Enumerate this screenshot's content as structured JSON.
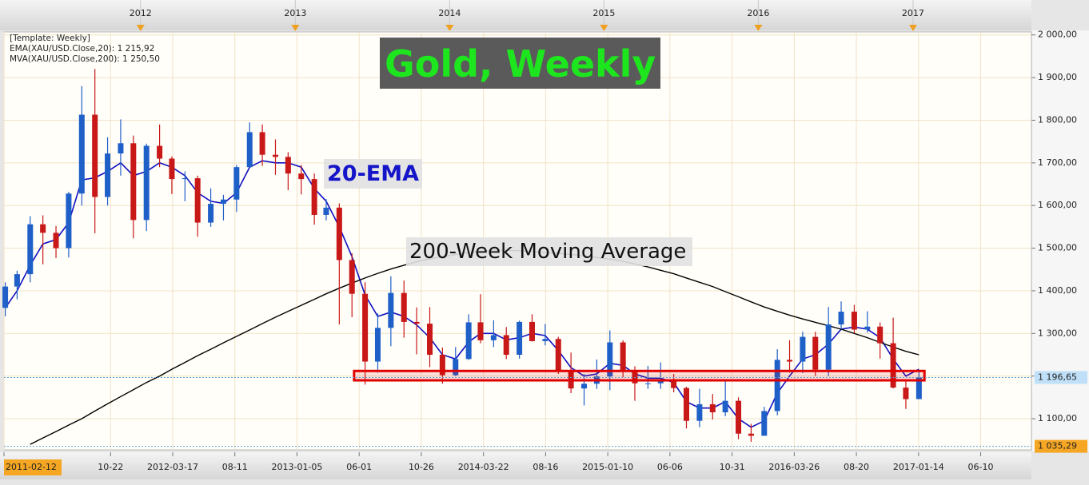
{
  "chart_data": {
    "type": "candlestick",
    "title": "Gold, Weekly",
    "annotations": [
      "20-EMA",
      "200-Week Moving Average"
    ],
    "legend": [
      {
        "text": "[Template: Weekly]",
        "color": "#333333"
      },
      {
        "text": "EMA(XAU/USD.Close,20): 1 215,92",
        "color": "#1a1aa0"
      },
      {
        "text": "MVA(XAU/USD.Close,200): 1 250,50",
        "color": "#111111"
      }
    ],
    "up_color": "#1f5fc8",
    "down_color": "#c81818",
    "x": [
      "2011-02-15",
      "2011-03-15",
      "2011-04-15",
      "2011-05-15",
      "2011-06-15",
      "2011-07-15",
      "2011-08-15",
      "2011-09-15",
      "2011-10-15",
      "2011-11-15",
      "2011-12-15",
      "2012-01-15",
      "2012-02-15",
      "2012-03-15",
      "2012-04-15",
      "2012-05-15",
      "2012-06-15",
      "2012-07-15",
      "2012-08-15",
      "2012-09-15",
      "2012-10-15",
      "2012-11-15",
      "2012-12-15",
      "2013-01-15",
      "2013-02-15",
      "2013-03-15",
      "2013-04-15",
      "2013-05-15",
      "2013-06-15",
      "2013-07-15",
      "2013-08-15",
      "2013-09-15",
      "2013-10-15",
      "2013-11-15",
      "2013-12-15",
      "2014-01-15",
      "2014-02-15",
      "2014-03-15",
      "2014-04-15",
      "2014-05-15",
      "2014-06-15",
      "2014-07-15",
      "2014-08-15",
      "2014-09-15",
      "2014-10-15",
      "2014-11-15",
      "2014-12-15",
      "2015-01-15",
      "2015-02-15",
      "2015-03-15",
      "2015-04-15",
      "2015-05-15",
      "2015-06-15",
      "2015-07-15",
      "2015-08-15",
      "2015-09-15",
      "2015-10-15",
      "2015-11-15",
      "2015-12-15",
      "2016-01-15",
      "2016-02-15",
      "2016-03-15",
      "2016-04-15",
      "2016-05-15",
      "2016-06-15",
      "2016-07-15",
      "2016-08-15",
      "2016-09-15",
      "2016-10-15",
      "2016-11-15",
      "2016-12-15",
      "2017-01-15"
    ],
    "open": [
      1360,
      1410,
      1439,
      1556,
      1536,
      1500,
      1628,
      1813,
      1620,
      1722,
      1746,
      1566,
      1740,
      1710,
      1662,
      1664,
      1560,
      1604,
      1614,
      1690,
      1772,
      1719,
      1714,
      1675,
      1662,
      1578,
      1595,
      1472,
      1393,
      1234,
      1313,
      1395,
      1327,
      1323,
      1250,
      1202,
      1240,
      1326,
      1284,
      1296,
      1250,
      1327,
      1282,
      1287,
      1210,
      1171,
      1182,
      1199,
      1279,
      1212,
      1183,
      1183,
      1190,
      1172,
      1095,
      1134,
      1115,
      1142,
      1065,
      1060,
      1118,
      1238,
      1234,
      1292,
      1215,
      1321,
      1351,
      1309,
      1316,
      1277,
      1173,
      1146
    ],
    "high": [
      1420,
      1447,
      1575,
      1577,
      1552,
      1632,
      1880,
      1920,
      1760,
      1802,
      1764,
      1745,
      1790,
      1715,
      1680,
      1670,
      1640,
      1625,
      1695,
      1795,
      1790,
      1755,
      1725,
      1695,
      1675,
      1615,
      1605,
      1488,
      1420,
      1347,
      1434,
      1424,
      1361,
      1362,
      1267,
      1268,
      1345,
      1392,
      1331,
      1315,
      1330,
      1345,
      1322,
      1292,
      1255,
      1205,
      1239,
      1307,
      1284,
      1223,
      1224,
      1232,
      1205,
      1175,
      1170,
      1158,
      1191,
      1150,
      1088,
      1128,
      1263,
      1284,
      1304,
      1304,
      1362,
      1375,
      1367,
      1352,
      1326,
      1337,
      1191,
      1210
    ],
    "low": [
      1340,
      1380,
      1420,
      1462,
      1477,
      1478,
      1600,
      1535,
      1600,
      1670,
      1523,
      1540,
      1690,
      1627,
      1610,
      1527,
      1550,
      1565,
      1585,
      1690,
      1693,
      1672,
      1636,
      1626,
      1555,
      1565,
      1321,
      1338,
      1180,
      1208,
      1270,
      1290,
      1251,
      1221,
      1182,
      1200,
      1238,
      1277,
      1268,
      1240,
      1241,
      1281,
      1272,
      1205,
      1160,
      1131,
      1170,
      1167,
      1197,
      1142,
      1170,
      1170,
      1162,
      1077,
      1080,
      1098,
      1106,
      1052,
      1046,
      1061,
      1108,
      1208,
      1207,
      1200,
      1200,
      1310,
      1300,
      1302,
      1241,
      1171,
      1123,
      1146
    ],
    "close": [
      1410,
      1439,
      1556,
      1536,
      1500,
      1628,
      1813,
      1620,
      1722,
      1746,
      1566,
      1740,
      1710,
      1662,
      1664,
      1560,
      1604,
      1614,
      1690,
      1772,
      1719,
      1714,
      1675,
      1662,
      1578,
      1595,
      1472,
      1393,
      1234,
      1313,
      1395,
      1327,
      1323,
      1250,
      1202,
      1240,
      1326,
      1284,
      1296,
      1250,
      1327,
      1282,
      1287,
      1210,
      1171,
      1182,
      1199,
      1279,
      1212,
      1183,
      1183,
      1190,
      1172,
      1095,
      1134,
      1115,
      1142,
      1065,
      1060,
      1118,
      1238,
      1234,
      1292,
      1215,
      1321,
      1351,
      1309,
      1316,
      1277,
      1173,
      1146,
      1197
    ],
    "lines": [
      {
        "color": "#1010c0",
        "width": 1.6,
        "values": [
          1360,
          1400,
          1460,
          1510,
          1520,
          1560,
          1660,
          1665,
          1680,
          1700,
          1670,
          1680,
          1700,
          1690,
          1670,
          1630,
          1610,
          1605,
          1630,
          1690,
          1705,
          1700,
          1700,
          1690,
          1640,
          1610,
          1550,
          1480,
          1390,
          1340,
          1350,
          1340,
          1320,
          1290,
          1250,
          1240,
          1280,
          1300,
          1300,
          1285,
          1290,
          1300,
          1295,
          1260,
          1220,
          1200,
          1205,
          1230,
          1225,
          1205,
          1195,
          1195,
          1185,
          1140,
          1125,
          1125,
          1140,
          1100,
          1080,
          1095,
          1160,
          1200,
          1240,
          1250,
          1275,
          1310,
          1315,
          1310,
          1290,
          1240,
          1200,
          1216
        ]
      },
      {
        "color": "#000000",
        "width": 1.4,
        "values": [
          null,
          null,
          1040,
          1055,
          1070,
          1085,
          1100,
          1118,
          1135,
          1152,
          1168,
          1185,
          1200,
          1216,
          1232,
          1248,
          1263,
          1278,
          1293,
          1308,
          1323,
          1338,
          1352,
          1366,
          1380,
          1393,
          1406,
          1418,
          1430,
          1441,
          1451,
          1460,
          1468,
          1475,
          1480,
          1485,
          1490,
          1493,
          1495,
          1495,
          1494,
          1492,
          1490,
          1488,
          1485,
          1482,
          1478,
          1474,
          1469,
          1463,
          1456,
          1448,
          1440,
          1430,
          1420,
          1410,
          1398,
          1386,
          1374,
          1362,
          1352,
          1343,
          1334,
          1326,
          1318,
          1310,
          1300,
          1290,
          1279,
          1268,
          1258,
          1250
        ]
      }
    ],
    "zone": {
      "x": [
        "2013-05-20",
        "2017-01-28"
      ],
      "y": [
        1190,
        1212
      ],
      "color": "#e00000"
    },
    "price_labels": [
      {
        "value": 1196.65,
        "label": "1 196,65",
        "color": "#bfe0f8"
      },
      {
        "value": 1035.29,
        "label": "1 035,29",
        "color": "#f5a623"
      }
    ],
    "xlim": [
      "2011-02-12",
      "2017-10-08"
    ],
    "ylim": [
      1027,
      2007
    ],
    "yticks": [
      {
        "value": 1100,
        "label": "1 100,00"
      },
      {
        "value": 1200,
        "label": "1 200,00"
      },
      {
        "value": 1300,
        "label": "1 300,00"
      },
      {
        "value": 1400,
        "label": "1 400,00"
      },
      {
        "value": 1500,
        "label": "1 500,00"
      },
      {
        "value": 1600,
        "label": "1 600,00"
      },
      {
        "value": 1700,
        "label": "1 700,00"
      },
      {
        "value": 1800,
        "label": "1 800,00"
      },
      {
        "value": 1900,
        "label": "1 900,00"
      },
      {
        "value": 2000,
        "label": "2 000,00"
      }
    ],
    "xticks": [
      "2011-02-12",
      {
        "value": "2011-10-22",
        "label": "10-22"
      },
      {
        "value": "2012-03-17",
        "label": "2012-03-17"
      },
      {
        "value": "2012-08-11",
        "label": "08-11"
      },
      {
        "value": "2013-01-05",
        "label": "2013-01-05"
      },
      {
        "value": "2013-06-01",
        "label": "06-01"
      },
      {
        "value": "2013-10-26",
        "label": "10-26"
      },
      {
        "value": "2014-03-22",
        "label": "2014-03-22"
      },
      {
        "value": "2014-08-16",
        "label": "08-16"
      },
      {
        "value": "2015-01-10",
        "label": "2015-01-10"
      },
      {
        "value": "2015-06-06",
        "label": "06-06"
      },
      {
        "value": "2015-10-31",
        "label": "10-31"
      },
      {
        "value": "2016-03-26",
        "label": "2016-03-26"
      },
      {
        "value": "2016-08-20",
        "label": "08-20"
      },
      {
        "value": "2017-01-14",
        "label": "2017-01-14"
      },
      {
        "value": "2017-06-10",
        "label": "06-10"
      }
    ],
    "year_ticks": [
      {
        "value": "2012-01-01",
        "label": "2012"
      },
      {
        "value": "2013-01-01",
        "label": "2013"
      },
      {
        "value": "2014-01-01",
        "label": "2014"
      },
      {
        "value": "2015-01-01",
        "label": "2015"
      },
      {
        "value": "2016-01-01",
        "label": "2016"
      },
      {
        "value": "2017-01-01",
        "label": "2017"
      }
    ],
    "grid": true
  }
}
